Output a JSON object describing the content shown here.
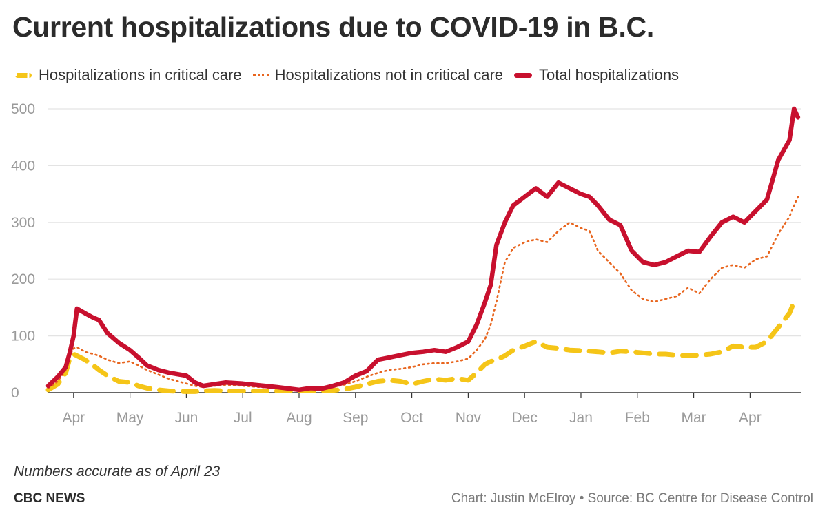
{
  "chart_data": {
    "type": "line",
    "title": "Current hospitalizations due to COVID-19 in B.C.",
    "xlabel": "",
    "ylabel": "",
    "ylim": [
      0,
      500
    ],
    "y_ticks": [
      0,
      100,
      200,
      300,
      400,
      500
    ],
    "x_ticks": [
      {
        "label": "Apr",
        "month": 1
      },
      {
        "label": "May",
        "month": 2
      },
      {
        "label": "Jun",
        "month": 3
      },
      {
        "label": "Jul",
        "month": 4
      },
      {
        "label": "Aug",
        "month": 5
      },
      {
        "label": "Sep",
        "month": 6
      },
      {
        "label": "Oct",
        "month": 7
      },
      {
        "label": "Nov",
        "month": 8
      },
      {
        "label": "Dec",
        "month": 9
      },
      {
        "label": "Jan",
        "month": 10
      },
      {
        "label": "Feb",
        "month": 11
      },
      {
        "label": "Mar",
        "month": 12
      },
      {
        "label": "Apr",
        "month": 13
      }
    ],
    "xlim": [
      0.55,
      13.9
    ],
    "x": [
      0.55,
      0.72,
      0.86,
      0.93,
      1.0,
      1.06,
      1.2,
      1.35,
      1.45,
      1.6,
      1.8,
      2.0,
      2.15,
      2.3,
      2.5,
      2.7,
      3.0,
      3.15,
      3.3,
      3.5,
      3.7,
      4.0,
      4.3,
      4.6,
      5.0,
      5.2,
      5.4,
      5.6,
      5.8,
      6.0,
      6.2,
      6.4,
      6.6,
      6.8,
      7.0,
      7.2,
      7.4,
      7.6,
      7.8,
      8.0,
      8.15,
      8.3,
      8.4,
      8.5,
      8.65,
      8.8,
      9.0,
      9.2,
      9.4,
      9.6,
      9.8,
      10.0,
      10.15,
      10.3,
      10.5,
      10.7,
      10.9,
      11.1,
      11.3,
      11.5,
      11.7,
      11.9,
      12.1,
      12.3,
      12.5,
      12.7,
      12.9,
      13.1,
      13.3,
      13.5,
      13.7,
      13.78,
      13.85
    ],
    "series": [
      {
        "name": "Hospitalizations in critical care",
        "color": "#f5c518",
        "style": "dashed",
        "values": [
          5,
          15,
          35,
          60,
          68,
          65,
          58,
          48,
          40,
          30,
          20,
          18,
          12,
          8,
          5,
          3,
          2,
          2,
          3,
          4,
          3,
          3,
          3,
          3,
          3,
          3,
          3,
          4,
          6,
          10,
          15,
          20,
          22,
          20,
          15,
          20,
          24,
          22,
          25,
          22,
          35,
          50,
          55,
          58,
          65,
          75,
          82,
          90,
          80,
          78,
          75,
          74,
          73,
          72,
          70,
          73,
          72,
          70,
          68,
          68,
          66,
          65,
          66,
          68,
          72,
          82,
          80,
          80,
          90,
          115,
          140,
          160,
          160
        ]
      },
      {
        "name": "Hospitalizations not in critical care",
        "color": "#e8651e",
        "style": "dotted",
        "values": [
          8,
          20,
          40,
          65,
          78,
          80,
          72,
          68,
          65,
          58,
          52,
          55,
          48,
          40,
          32,
          24,
          16,
          12,
          10,
          12,
          14,
          12,
          10,
          8,
          5,
          8,
          6,
          10,
          14,
          20,
          28,
          35,
          40,
          42,
          45,
          50,
          52,
          52,
          55,
          60,
          75,
          95,
          120,
          160,
          230,
          255,
          265,
          270,
          265,
          285,
          300,
          290,
          285,
          250,
          230,
          210,
          180,
          165,
          160,
          165,
          170,
          185,
          175,
          200,
          220,
          225,
          220,
          235,
          240,
          280,
          310,
          330,
          345
        ]
      },
      {
        "name": "Total hospitalizations",
        "color": "#c8102e",
        "style": "solid",
        "values": [
          12,
          28,
          45,
          70,
          100,
          148,
          140,
          132,
          128,
          105,
          88,
          75,
          62,
          48,
          40,
          35,
          30,
          18,
          12,
          15,
          18,
          16,
          13,
          10,
          5,
          8,
          7,
          12,
          18,
          30,
          38,
          58,
          62,
          66,
          70,
          72,
          75,
          72,
          80,
          90,
          120,
          160,
          190,
          260,
          300,
          330,
          345,
          360,
          345,
          370,
          360,
          350,
          345,
          330,
          305,
          295,
          250,
          230,
          225,
          230,
          240,
          250,
          248,
          275,
          300,
          310,
          300,
          320,
          340,
          410,
          445,
          500,
          485
        ]
      }
    ]
  },
  "note": "Numbers accurate as of April 23",
  "brand": "CBC NEWS",
  "credit": "Chart: Justin McElroy • Source: BC Centre for Disease Control"
}
